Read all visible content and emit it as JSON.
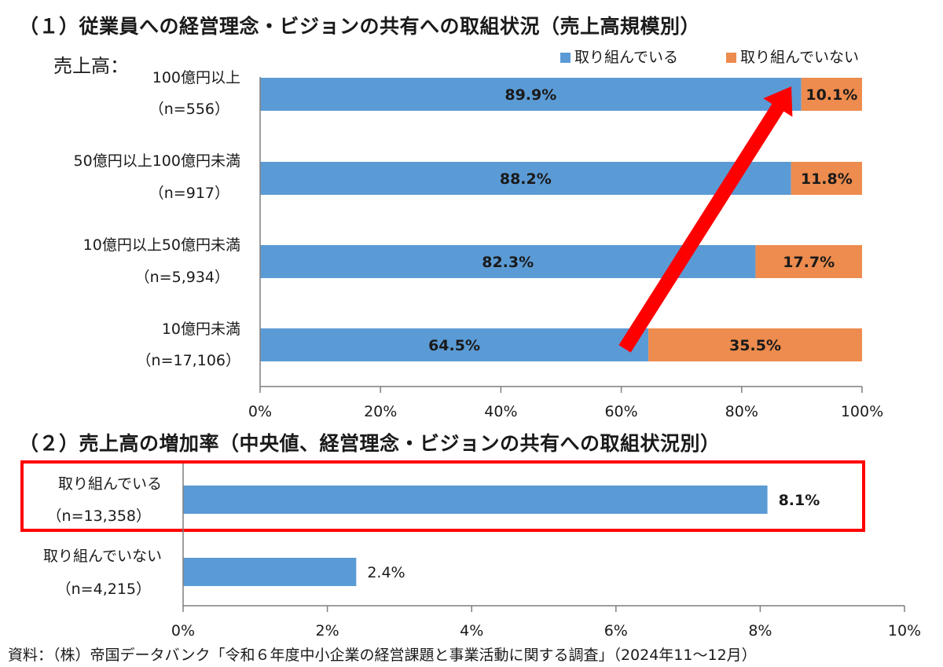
{
  "chart1": {
    "title": "（１）従業員への経営理念・ビジョンの共有への取組状況（売上高規模別）",
    "ylabel": "売上高：",
    "legend": [
      "取り組んでいる",
      "取り組んでいない"
    ],
    "categories": [
      {
        "name": "100億円以上",
        "n": "（n=556）"
      },
      {
        "name": "50億円以上100億円未満",
        "n": "（n=917）"
      },
      {
        "name": "10億円以上50億円未満",
        "n": "（n=5,934）"
      },
      {
        "name": "10億円未満",
        "n": "（n=17,106）"
      }
    ],
    "x_ticks": [
      "0%",
      "20%",
      "40%",
      "60%",
      "80%",
      "100%"
    ]
  },
  "chart2": {
    "title": "（２）売上高の増加率（中央値、経営理念・ビジョンの共有への取組状況別）",
    "categories": [
      {
        "name": "取り組んでいる",
        "n": "（n=13,358）"
      },
      {
        "name": "取り組んでいない",
        "n": "（n=4,215）"
      }
    ],
    "x_ticks": [
      "0%",
      "2%",
      "4%",
      "6%",
      "8%",
      "10%"
    ]
  },
  "source": "資料：（株）帝国データバンク「令和６年度中小企業の経営課題と事業活動に関する調査」（2024年11～12月）",
  "colors": {
    "blue": "#5b9bd5",
    "orange": "#ed8c4e",
    "red": "#ff0000",
    "axis": "#7f7f7f"
  },
  "chart_data": [
    {
      "type": "bar",
      "orientation": "horizontal",
      "stacked": true,
      "title": "（１）従業員への経営理念・ビジョンの共有への取組状況（売上高規模別）",
      "ylabel": "売上高：",
      "categories": [
        "100億円以上（n=556）",
        "50億円以上100億円未満（n=917）",
        "10億円以上50億円未満（n=5,934）",
        "10億円未満（n=17,106）"
      ],
      "series": [
        {
          "name": "取り組んでいる",
          "values": [
            89.9,
            88.2,
            82.3,
            64.5
          ],
          "labels": [
            "89.9%",
            "88.2%",
            "82.3%",
            "64.5%"
          ]
        },
        {
          "name": "取り組んでいない",
          "values": [
            10.1,
            11.8,
            17.7,
            35.5
          ],
          "labels": [
            "10.1%",
            "11.8%",
            "17.7%",
            "35.5%"
          ]
        }
      ],
      "xlim": [
        0,
        100
      ],
      "grid": false,
      "legend": "top-right"
    },
    {
      "type": "bar",
      "orientation": "horizontal",
      "title": "（２）売上高の増加率（中央値、経営理念・ビジョンの共有への取組状況別）",
      "categories": [
        "取り組んでいる（n=13,358）",
        "取り組んでいない（n=4,215）"
      ],
      "values": [
        8.1,
        2.4
      ],
      "labels": [
        "8.1%",
        "2.4%"
      ],
      "xlim": [
        0,
        10
      ],
      "grid": false
    }
  ]
}
